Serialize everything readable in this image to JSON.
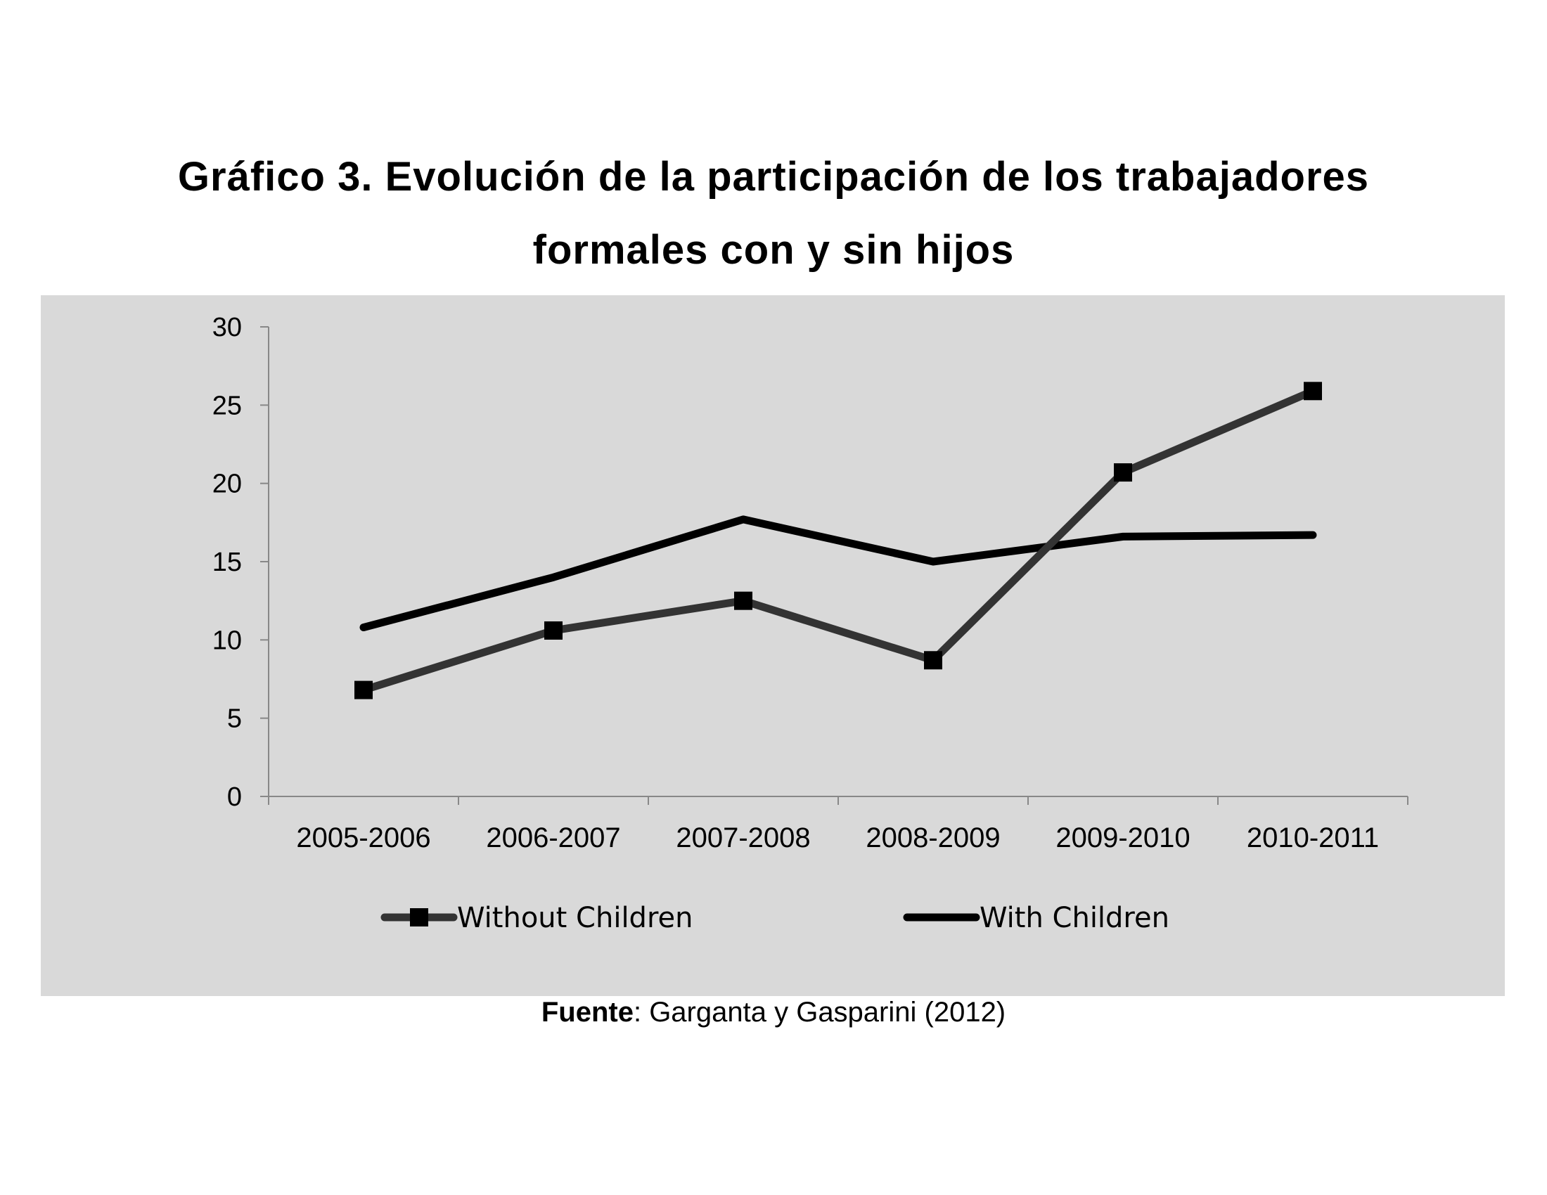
{
  "title_lines": [
    "Gráfico 3. Evolución de la participación de los trabajadores",
    "formales con y sin hijos"
  ],
  "source": {
    "label": "Fuente",
    "text": ": Garganta y Gasparini (2012)"
  },
  "colors": {
    "panel_background": "#d9d9d9",
    "without_children": "#333333",
    "with_children": "#000000",
    "axis": "#888888"
  },
  "chart_data": {
    "type": "line",
    "title": "Gráfico 3. Evolución de la participación de los trabajadores formales con y sin hijos",
    "xlabel": "",
    "ylabel": "",
    "categories": [
      "2005-2006",
      "2006-2007",
      "2007-2008",
      "2008-2009",
      "2009-2010",
      "2010-2011"
    ],
    "ylim": [
      0,
      30
    ],
    "yticks": [
      "0",
      "5",
      "10",
      "15",
      "20",
      "25",
      "30"
    ],
    "grid": false,
    "legend_position": "bottom",
    "series": [
      {
        "name": "Without Children",
        "marker": "square",
        "color": "#333333",
        "values": [
          6.8,
          10.6,
          12.5,
          8.7,
          20.7,
          25.9
        ]
      },
      {
        "name": "With Children",
        "marker": "none",
        "color": "#000000",
        "values": [
          10.8,
          14.0,
          17.7,
          15.0,
          16.6,
          16.7
        ]
      }
    ]
  }
}
